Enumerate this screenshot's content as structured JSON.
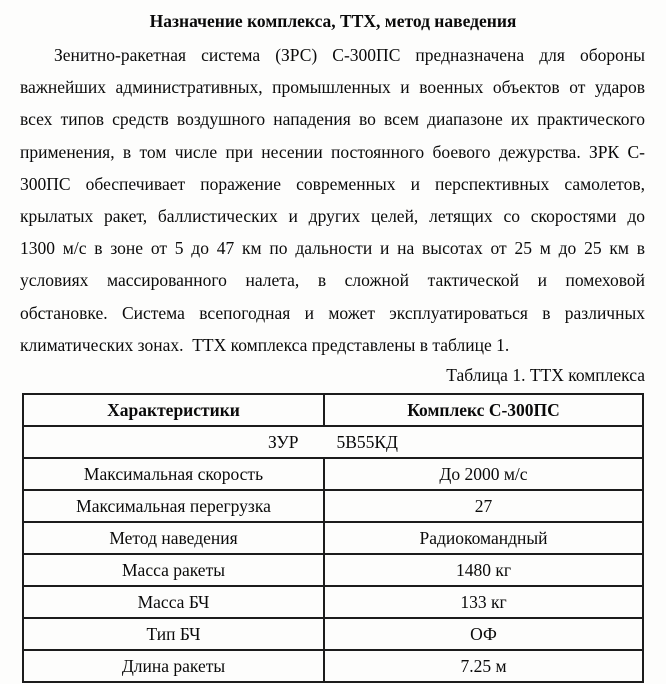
{
  "document": {
    "title": "Назначение комплекса, ТТХ, метод наведения",
    "paragraph_lines": [
      "Зенитно-ракетная система (ЗРС) С-300ПС предназначена для обороны",
      "важнейших административных, промышленных и военных объектов от ударов",
      "всех типов средств воздушного нападения во всем диапазоне их практического",
      "применения, в том числе при несении постоянного боевого дежурства. ЗРК С-",
      "300ПС обеспечивает поражение современных и перспективных самолетов,",
      "крылатых ракет, баллистических и других целей, летящих со скоростями до",
      "1300 м/с в зоне от 5 до 47 км по дальности и на высотах от 25 м до 25 км в",
      "условиях массированного налета, в сложной тактической и помеховой",
      "обстановке. Система всепогодная и может эксплуатироваться в различных",
      "климатических зонах.  ТТХ комплекса представлены в таблице 1."
    ],
    "table_caption": "Таблица 1. ТТХ комплекса",
    "table": {
      "headers": [
        "Характеристики",
        "Комплекс С-300ПС"
      ],
      "merged_row": {
        "label": "ЗУР",
        "value": "5В55КД"
      },
      "rows": [
        {
          "name": "Максимальная скорость",
          "value": "До 2000 м/с"
        },
        {
          "name": "Максимальная перегрузка",
          "value": "27"
        },
        {
          "name": "Метод наведения",
          "value": "Радиокомандный"
        },
        {
          "name": "Масса ракеты",
          "value": "1480 кг"
        },
        {
          "name": "Масса БЧ",
          "value": "133 кг"
        },
        {
          "name": "Тип БЧ",
          "value": "ОФ"
        },
        {
          "name": "Длина ракеты",
          "value": "7.25 м"
        }
      ]
    },
    "colors": {
      "background": "#fdfdfc",
      "text": "#0a0a0a",
      "table_border": "#1c1c1c"
    }
  }
}
